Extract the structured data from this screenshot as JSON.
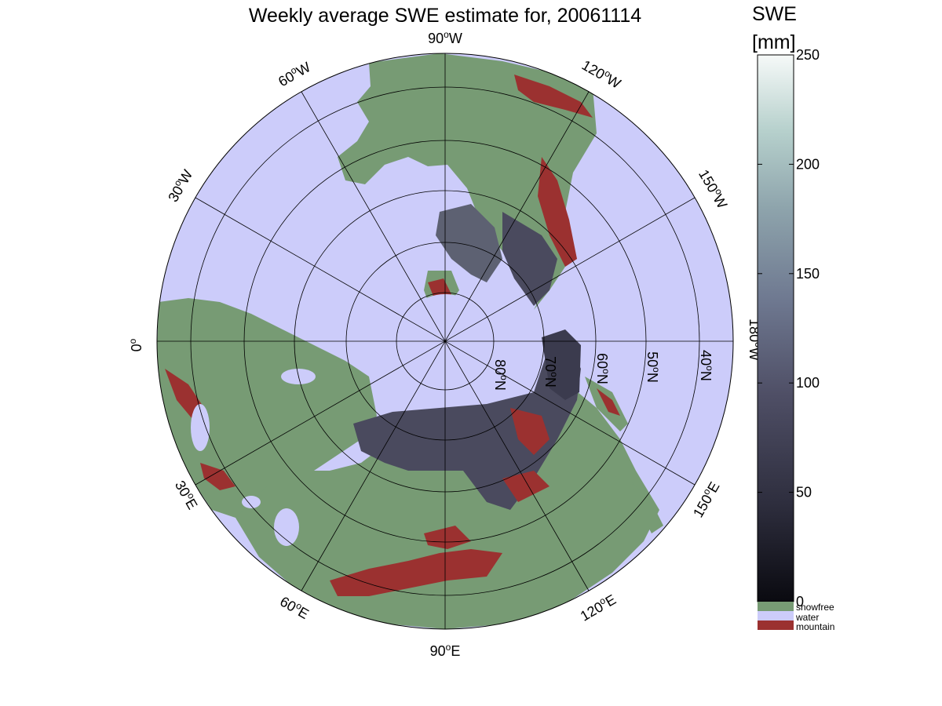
{
  "title": "Weekly average SWE estimate for, 20061114",
  "colorbar": {
    "label_line1": "SWE",
    "label_line2": "[mm]",
    "ticks": [
      "0",
      "50",
      "100",
      "150",
      "200",
      "250"
    ],
    "range": [
      0,
      250
    ],
    "gradient_colors": [
      "#0a0a10",
      "#2e2e3e",
      "#4f4f66",
      "#6e7890",
      "#8ea4ac",
      "#b6d0cc",
      "#f6f9f8"
    ],
    "categories": [
      {
        "name": "snowfree",
        "color": "#779b74"
      },
      {
        "name": "water",
        "color": "#ccccfa"
      },
      {
        "name": "mountain",
        "color": "#9b3130"
      }
    ]
  },
  "map": {
    "projection": "north-polar stereographic",
    "ocean_color": "#ccccfa",
    "land_color": "#779b74",
    "mountain_color": "#9b3130",
    "snow_color": "#3b3b4e",
    "longitude_labels": [
      {
        "deg": "90",
        "hemi": "W"
      },
      {
        "deg": "60",
        "hemi": "W"
      },
      {
        "deg": "120",
        "hemi": "W"
      },
      {
        "deg": "30",
        "hemi": "W"
      },
      {
        "deg": "150",
        "hemi": "W"
      },
      {
        "deg": "0",
        "hemi": ""
      },
      {
        "deg": "180",
        "hemi": "W"
      },
      {
        "deg": "30",
        "hemi": "E"
      },
      {
        "deg": "150",
        "hemi": "E"
      },
      {
        "deg": "60",
        "hemi": "E"
      },
      {
        "deg": "120",
        "hemi": "E"
      },
      {
        "deg": "90",
        "hemi": "E"
      }
    ],
    "latitude_labels": [
      {
        "deg": "80",
        "hemi": "N"
      },
      {
        "deg": "70",
        "hemi": "N"
      },
      {
        "deg": "60",
        "hemi": "N"
      },
      {
        "deg": "50",
        "hemi": "N"
      },
      {
        "deg": "40",
        "hemi": "N"
      }
    ]
  }
}
